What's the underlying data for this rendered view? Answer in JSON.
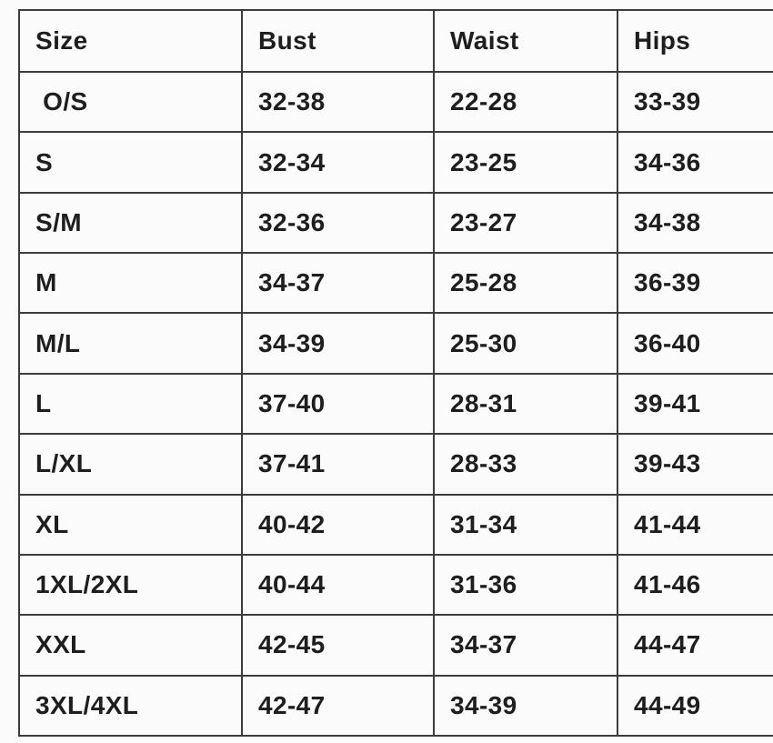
{
  "colors": {
    "background": "#fbfbfb",
    "border": "#3c3c3c",
    "text": "#1e1e1e"
  },
  "table": {
    "headers": [
      "Size",
      "Bust",
      "Waist",
      "Hips"
    ],
    "rows": [
      [
        " O/S",
        "32-38",
        "22-28",
        "33-39"
      ],
      [
        "S",
        "32-34",
        "23-25",
        "34-36"
      ],
      [
        "S/M",
        "32-36",
        "23-27",
        "34-38"
      ],
      [
        "M",
        "34-37",
        "25-28",
        "36-39"
      ],
      [
        "M/L",
        "34-39",
        "25-30",
        "36-40"
      ],
      [
        "L",
        "37-40",
        "28-31",
        "39-41"
      ],
      [
        "L/XL",
        "37-41",
        "28-33",
        "39-43"
      ],
      [
        "XL",
        "40-42",
        "31-34",
        "41-44"
      ],
      [
        "1XL/2XL",
        "40-44",
        "31-36",
        "41-46"
      ],
      [
        "XXL",
        "42-45",
        "34-37",
        "44-47"
      ],
      [
        "3XL/4XL",
        "42-47",
        "34-39",
        "44-49"
      ]
    ]
  },
  "chart_data": {
    "type": "table",
    "columns": [
      "Size",
      "Bust",
      "Waist",
      "Hips"
    ],
    "rows": [
      {
        "size": "O/S",
        "bust": "32-38",
        "waist": "22-28",
        "hips": "33-39"
      },
      {
        "size": "S",
        "bust": "32-34",
        "waist": "23-25",
        "hips": "34-36"
      },
      {
        "size": "S/M",
        "bust": "32-36",
        "waist": "23-27",
        "hips": "34-38"
      },
      {
        "size": "M",
        "bust": "34-37",
        "waist": "25-28",
        "hips": "36-39"
      },
      {
        "size": "M/L",
        "bust": "34-39",
        "waist": "25-30",
        "hips": "36-40"
      },
      {
        "size": "L",
        "bust": "37-40",
        "waist": "28-31",
        "hips": "39-41"
      },
      {
        "size": "L/XL",
        "bust": "37-41",
        "waist": "28-33",
        "hips": "39-43"
      },
      {
        "size": "XL",
        "bust": "40-42",
        "waist": "31-34",
        "hips": "41-44"
      },
      {
        "size": "1XL/2XL",
        "bust": "40-44",
        "waist": "31-36",
        "hips": "41-46"
      },
      {
        "size": "XXL",
        "bust": "42-45",
        "waist": "34-37",
        "hips": "44-47"
      },
      {
        "size": "3XL/4XL",
        "bust": "42-47",
        "waist": "34-39",
        "hips": "44-49"
      }
    ]
  }
}
